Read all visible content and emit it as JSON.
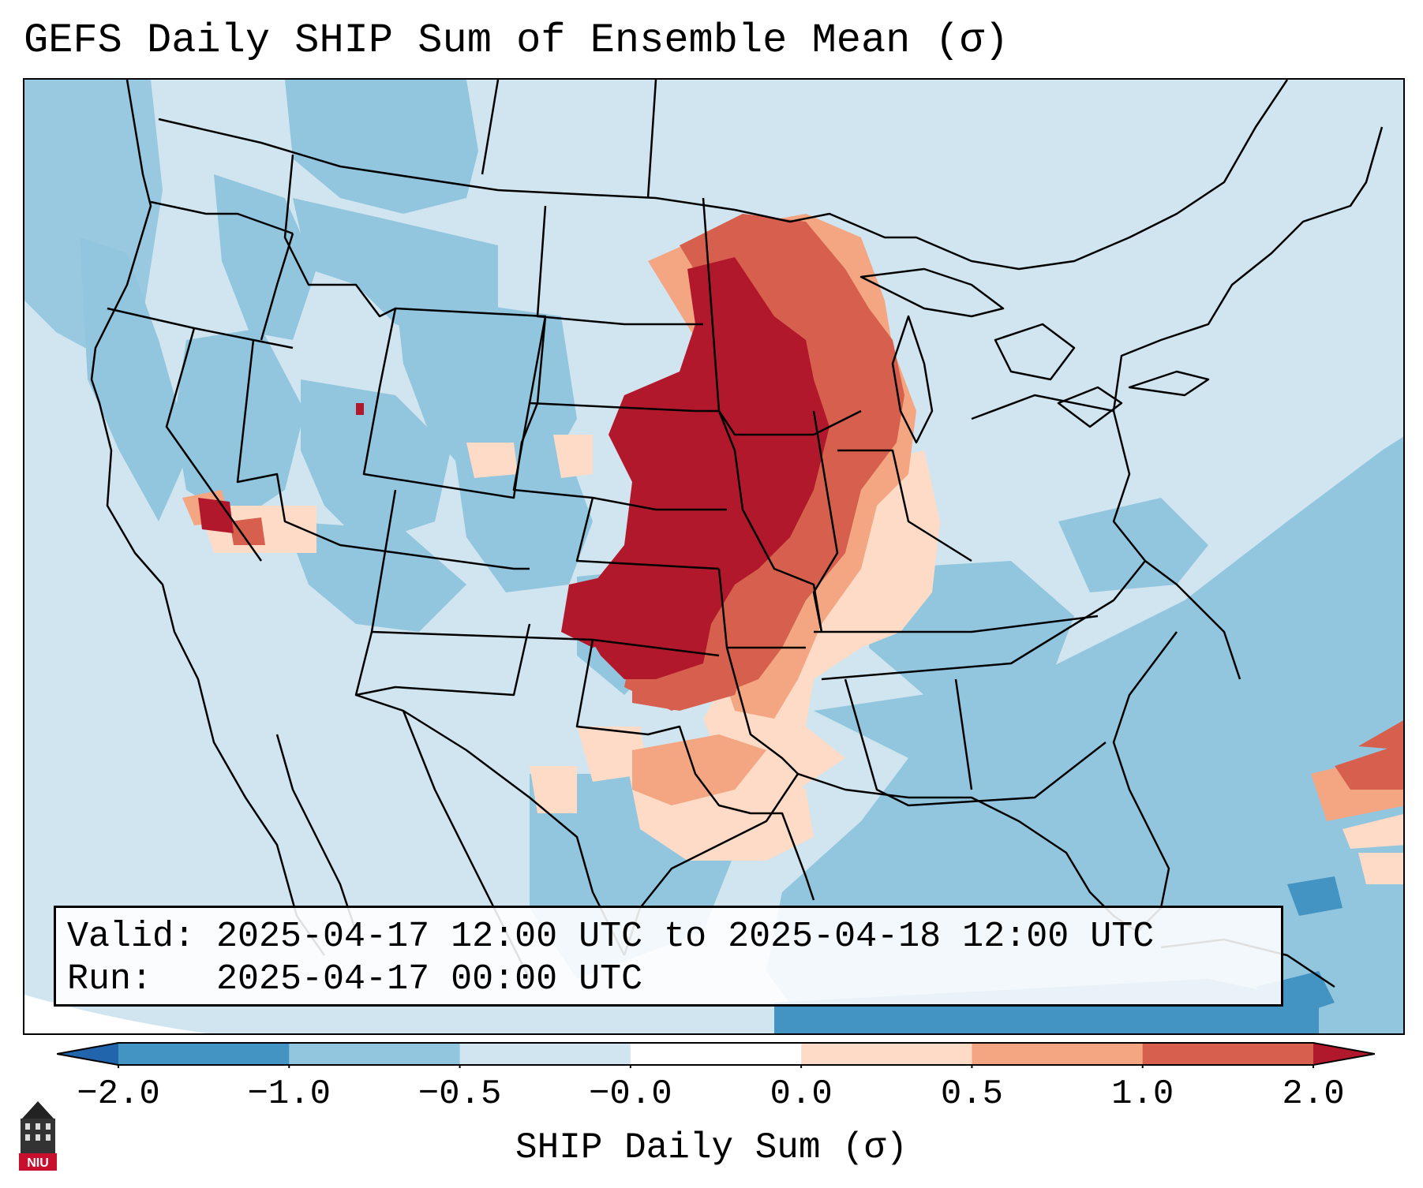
{
  "title": "GEFS Daily SHIP Sum of Ensemble Mean (σ)",
  "info": {
    "valid_line": "Valid: 2025-04-17 12:00 UTC to 2025-04-18 12:00 UTC",
    "run_line": "Run:   2025-04-17 00:00 UTC"
  },
  "colorbar": {
    "label": "SHIP Daily Sum (σ)",
    "ticks": [
      "−2.0",
      "−1.0",
      "−0.5",
      "−0.0",
      "0.0",
      "0.5",
      "1.0",
      "2.0"
    ],
    "colors": [
      "#4393c3",
      "#92c5de",
      "#d1e5f0",
      "#ffffff",
      "#fddbc7",
      "#f4a582",
      "#d6604d"
    ],
    "under_color": "#2166ac",
    "over_color": "#b2182b"
  },
  "map_colors": {
    "background_ocean": "#d1e5f0",
    "neg_mid": "#92c5de",
    "neg_strong": "#4393c3",
    "pos_light": "#fddbc7",
    "pos_mid": "#f4a582",
    "pos_strong": "#d6604d",
    "pos_max": "#b2182b",
    "outside": "#ffffff"
  },
  "logo": {
    "text": "NIU",
    "logo_icon": "university-tower-icon"
  }
}
